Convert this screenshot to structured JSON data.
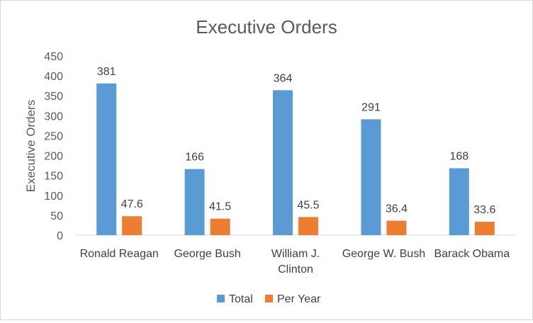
{
  "chart_data": {
    "type": "bar",
    "title": "Executive Orders",
    "ylabel": "Executive Orders",
    "xlabel": "",
    "categories": [
      [
        "Ronald Reagan"
      ],
      [
        "George Bush"
      ],
      [
        "William J.",
        "Clinton"
      ],
      [
        "George W. Bush"
      ],
      [
        "Barack Obama"
      ]
    ],
    "series": [
      {
        "name": "Total",
        "color": "#5b9bd5",
        "values": [
          381,
          166,
          364,
          291,
          168
        ],
        "labels": [
          "381",
          "166",
          "364",
          "291",
          "168"
        ]
      },
      {
        "name": "Per Year",
        "color": "#ed7d31",
        "values": [
          47.6,
          41.5,
          45.5,
          36.4,
          33.6
        ],
        "labels": [
          "47.6",
          "41.5",
          "45.5",
          "36.4",
          "33.6"
        ]
      }
    ],
    "ylim": [
      0,
      450
    ],
    "yticks": [
      "0",
      "50",
      "100",
      "150",
      "200",
      "250",
      "300",
      "350",
      "400",
      "450"
    ],
    "grid": false,
    "legend": "bottom"
  }
}
